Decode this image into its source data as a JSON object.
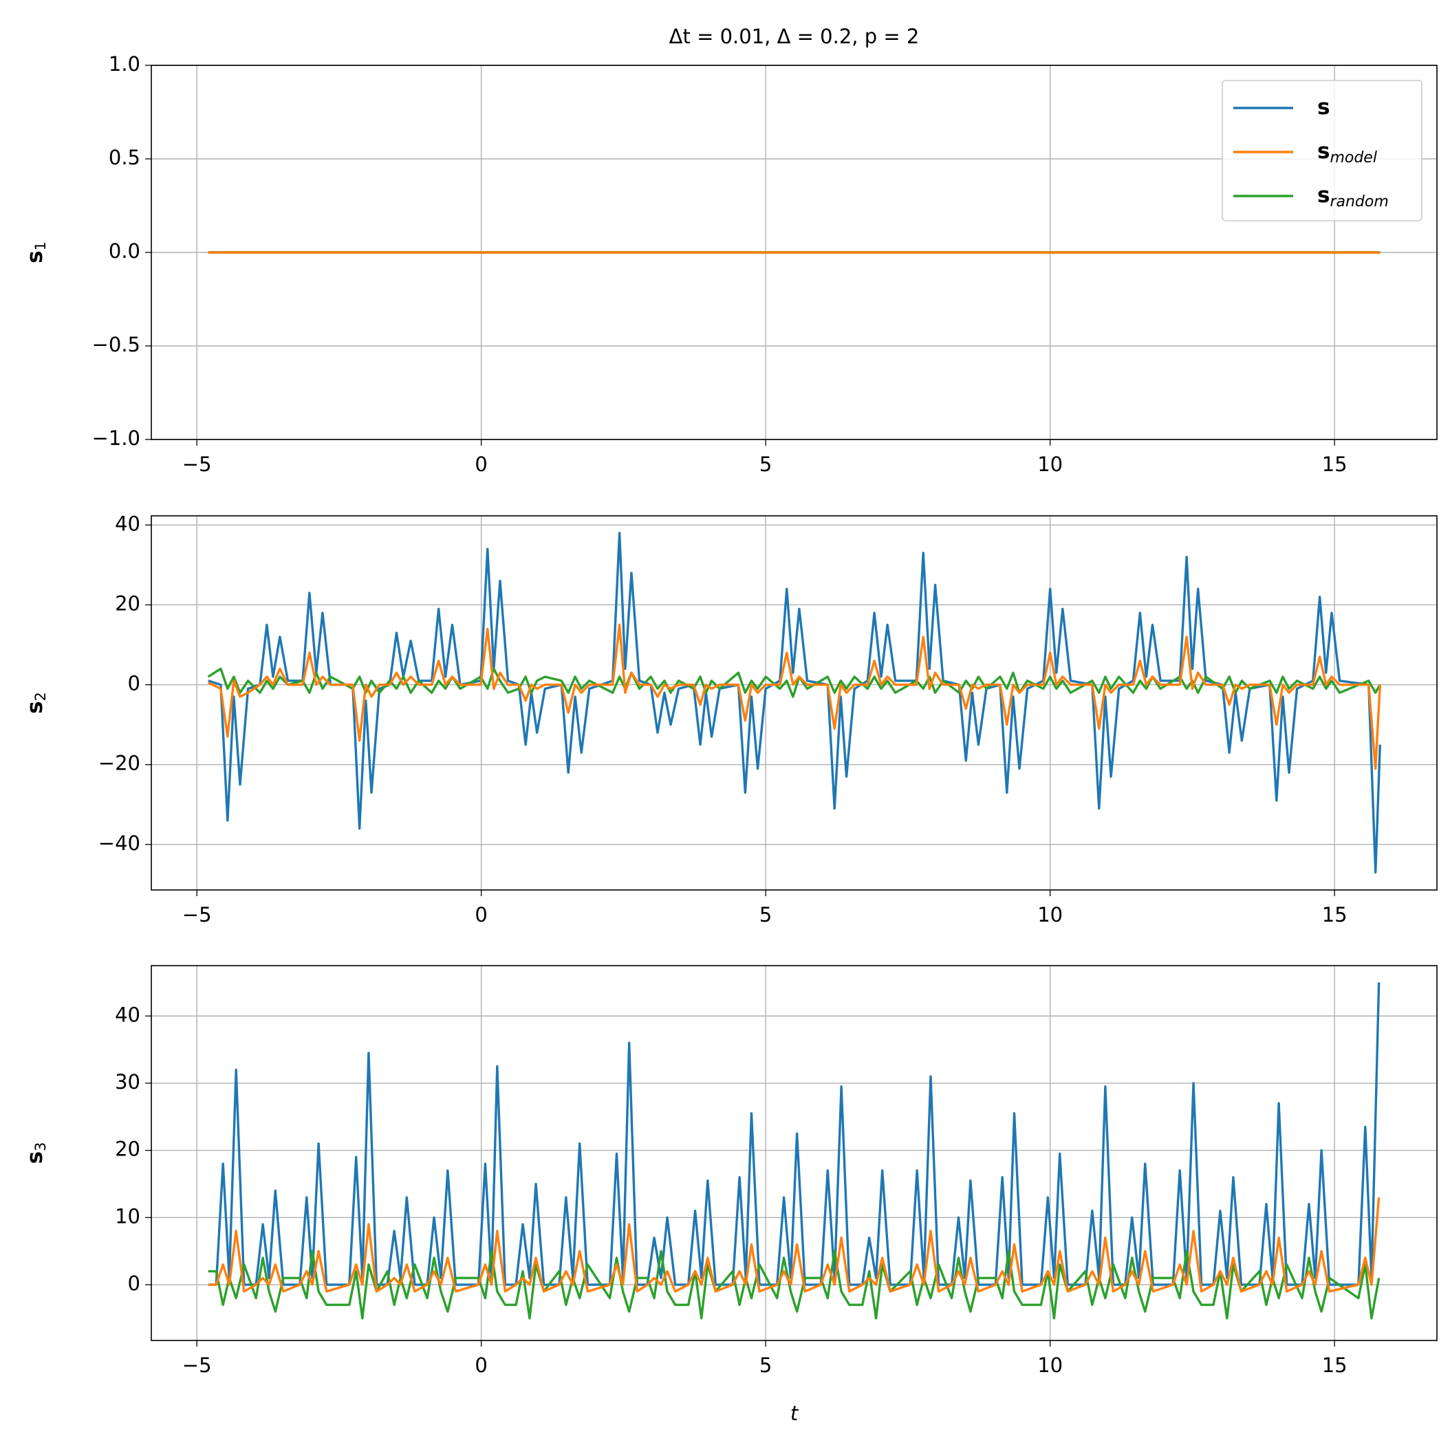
{
  "chart_data": [
    {
      "type": "line",
      "title": "Δt = 0.01, Δ = 0.2, p = 2",
      "ylabel": "s",
      "ylabel_sub": "1",
      "x": [
        -4.8,
        15.8
      ],
      "series": [
        {
          "name": "s",
          "color": "#1f77b4",
          "values": [
            0,
            0
          ]
        },
        {
          "name": "s",
          "subscript": "model",
          "color": "#ff7f0e",
          "values": [
            0,
            0
          ]
        },
        {
          "name": "s",
          "subscript": "random",
          "color": "#2ca02c",
          "values": [
            0,
            0
          ]
        }
      ],
      "xlim": [
        -5.8,
        16.8
      ],
      "xticks": [
        {
          "value": -5,
          "label": "−5"
        },
        0,
        5,
        10,
        15
      ],
      "ylim": [
        -1,
        1
      ],
      "yticks": [
        {
          "value": -1,
          "label": "−1.0"
        },
        {
          "value": -0.5,
          "label": "−0.5"
        },
        {
          "value": 0,
          "label": "0.0"
        },
        {
          "value": 0.5,
          "label": "0.5"
        },
        {
          "value": 1,
          "label": "1.0"
        }
      ],
      "grid": true,
      "legend": "upper right"
    },
    {
      "type": "line",
      "ylabel": "s",
      "ylabel_sub": "2",
      "x": [
        -4.8,
        -4.58,
        -4.46,
        -4.35,
        -4.24,
        -4.1,
        -3.89,
        -3.77,
        -3.66,
        -3.54,
        -3.4,
        -3.14,
        -3.02,
        -2.9,
        -2.79,
        -2.65,
        -2.26,
        -2.14,
        -2.03,
        -1.93,
        -1.79,
        -1.61,
        -1.49,
        -1.37,
        -1.24,
        -1.1,
        -0.87,
        -0.75,
        -0.63,
        -0.51,
        -0.37,
        -0.01,
        0.11,
        0.22,
        0.33,
        0.47,
        0.66,
        0.78,
        0.88,
        0.98,
        1.12,
        1.41,
        1.53,
        1.65,
        1.76,
        1.9,
        2.31,
        2.43,
        2.53,
        2.64,
        2.78,
        2.98,
        3.1,
        3.22,
        3.33,
        3.47,
        3.73,
        3.85,
        3.95,
        4.05,
        4.19,
        4.52,
        4.64,
        4.75,
        4.86,
        5.0,
        5.25,
        5.37,
        5.48,
        5.59,
        5.73,
        6.09,
        6.21,
        6.32,
        6.42,
        6.56,
        6.79,
        6.91,
        7.03,
        7.14,
        7.28,
        7.65,
        7.77,
        7.88,
        7.98,
        8.12,
        8.4,
        8.52,
        8.63,
        8.74,
        8.88,
        9.12,
        9.24,
        9.35,
        9.46,
        9.6,
        9.88,
        10.0,
        10.11,
        10.22,
        10.36,
        10.74,
        10.86,
        10.97,
        11.07,
        11.21,
        11.46,
        11.58,
        11.69,
        11.8,
        11.94,
        12.28,
        12.4,
        12.5,
        12.6,
        12.74,
        13.03,
        13.15,
        13.26,
        13.37,
        13.51,
        13.86,
        13.98,
        14.09,
        14.2,
        14.34,
        14.62,
        14.74,
        14.85,
        14.95,
        15.09,
        15.6,
        15.72,
        15.8
      ],
      "series": [
        {
          "color": "#1f77b4",
          "values": [
            1,
            0,
            -34,
            -3,
            -25,
            -1,
            0,
            15,
            2,
            12,
            1,
            1,
            23,
            3,
            18,
            0,
            0,
            -36,
            -4,
            -27,
            -1,
            0,
            13,
            2,
            11,
            1,
            1,
            19,
            2,
            15,
            0,
            1,
            34,
            4,
            26,
            1,
            0,
            -15,
            -2,
            -12,
            -1,
            0,
            -22,
            -3,
            -17,
            -1,
            1,
            38,
            4,
            28,
            1,
            0,
            -12,
            -2,
            -10,
            -1,
            0,
            -15,
            -2,
            -13,
            -1,
            0,
            -27,
            -3,
            -21,
            -1,
            1,
            24,
            3,
            19,
            1,
            0,
            -31,
            -3,
            -23,
            -1,
            1,
            18,
            2,
            15,
            1,
            1,
            33,
            4,
            25,
            1,
            0,
            -19,
            -2,
            -15,
            -1,
            0,
            -27,
            -3,
            -21,
            -1,
            1,
            24,
            3,
            19,
            1,
            0,
            -31,
            -3,
            -23,
            -1,
            1,
            18,
            2,
            15,
            1,
            1,
            32,
            4,
            24,
            1,
            0,
            -17,
            -2,
            -14,
            -1,
            0,
            -29,
            -3,
            -22,
            -1,
            1,
            22,
            3,
            18,
            1,
            0,
            -47,
            -15
          ]
        },
        {
          "color": "#ff7f0e",
          "values": [
            0.5,
            -1,
            -13,
            1,
            -3,
            -2,
            0,
            2,
            0,
            4,
            0,
            0,
            8,
            0,
            2,
            0,
            0,
            -14,
            0,
            -3,
            0,
            0,
            3,
            0,
            2,
            0,
            0,
            6,
            0,
            2,
            0,
            0,
            14,
            -1,
            3,
            0,
            0,
            -4,
            0,
            -1,
            0,
            0,
            -7,
            0,
            -2,
            0,
            0,
            15,
            -2,
            3,
            0,
            0,
            -3,
            0,
            -1,
            0,
            0,
            -5,
            0,
            -1,
            0,
            0,
            -9,
            0,
            -2,
            0,
            0,
            8,
            0,
            2,
            0,
            0,
            -11,
            0,
            -2,
            0,
            0,
            6,
            0,
            2,
            0,
            0,
            12,
            -1,
            3,
            0,
            0,
            -6,
            0,
            -1,
            0,
            0,
            -10,
            0,
            -2,
            0,
            0,
            8,
            0,
            2,
            0,
            0,
            -11,
            0,
            -2,
            0,
            0,
            6,
            0,
            2,
            0,
            0,
            12,
            -1,
            3,
            0,
            0,
            -5,
            0,
            -1,
            0,
            0,
            -10,
            0,
            -2,
            0,
            0,
            7,
            0,
            2,
            0,
            0,
            -21,
            0
          ]
        },
        {
          "color": "#2ca02c",
          "values": [
            2,
            4,
            -1,
            2,
            -2,
            1,
            -2,
            1,
            -1,
            2,
            0,
            1,
            -2,
            3,
            -1,
            2,
            -1,
            2,
            -2,
            1,
            -2,
            1,
            -1,
            2,
            -2,
            1,
            -2,
            1,
            -1,
            2,
            -1,
            2,
            -1,
            4,
            1,
            -2,
            -1,
            2,
            -2,
            1,
            2,
            1,
            -2,
            2,
            -1,
            1,
            -2,
            2,
            -1,
            3,
            -1,
            2,
            -1,
            1,
            -2,
            1,
            -1,
            2,
            -2,
            1,
            -1,
            3,
            -2,
            1,
            -1,
            2,
            -1,
            1,
            -3,
            2,
            -1,
            2,
            -2,
            1,
            -1,
            2,
            -1,
            2,
            -1,
            1,
            -2,
            1,
            -1,
            2,
            -2,
            1,
            -2,
            1,
            -1,
            2,
            -1,
            2,
            -1,
            3,
            -2,
            1,
            -1,
            2,
            -1,
            1,
            -2,
            1,
            -2,
            2,
            -1,
            2,
            -2,
            1,
            -1,
            2,
            -1,
            2,
            -1,
            1,
            -2,
            2,
            -1,
            2,
            -2,
            1,
            -1,
            1,
            -2,
            2,
            -1,
            1,
            -1,
            2,
            -1,
            1,
            -2,
            1,
            -2,
            0
          ]
        }
      ],
      "xlim": [
        -5.8,
        16.8
      ],
      "xticks": [
        {
          "value": -5,
          "label": "−5"
        },
        0,
        5,
        10,
        15
      ],
      "ylim": [
        -51.4,
        42.3
      ],
      "yticks": [
        {
          "value": -40,
          "label": "−40"
        },
        {
          "value": -20,
          "label": "−20"
        },
        0,
        20,
        40
      ],
      "grid": true
    },
    {
      "type": "line",
      "ylabel": "s",
      "ylabel_sub": "3",
      "xlabel": "t",
      "x": [
        -4.8,
        -4.66,
        -4.54,
        -4.43,
        -4.31,
        -4.17,
        -3.96,
        -3.84,
        -3.73,
        -3.62,
        -3.48,
        -3.19,
        -3.07,
        -2.97,
        -2.86,
        -2.72,
        -2.32,
        -2.2,
        -2.09,
        -1.98,
        -1.84,
        -1.65,
        -1.53,
        -1.42,
        -1.31,
        -1.17,
        -0.95,
        -0.83,
        -0.71,
        -0.59,
        -0.45,
        -0.05,
        0.07,
        0.18,
        0.28,
        0.42,
        0.61,
        0.73,
        0.85,
        0.96,
        1.1,
        1.37,
        1.49,
        1.61,
        1.73,
        1.87,
        2.26,
        2.38,
        2.49,
        2.6,
        2.74,
        2.92,
        3.04,
        3.16,
        3.27,
        3.41,
        3.64,
        3.76,
        3.87,
        3.98,
        4.12,
        4.42,
        4.54,
        4.65,
        4.75,
        4.89,
        5.2,
        5.32,
        5.44,
        5.55,
        5.69,
        5.97,
        6.09,
        6.21,
        6.33,
        6.47,
        6.7,
        6.82,
        6.94,
        7.05,
        7.19,
        7.54,
        7.66,
        7.78,
        7.9,
        8.04,
        8.27,
        8.39,
        8.5,
        8.6,
        8.74,
        9.04,
        9.16,
        9.27,
        9.37,
        9.51,
        9.84,
        9.96,
        10.07,
        10.17,
        10.31,
        10.62,
        10.74,
        10.86,
        10.97,
        11.11,
        11.32,
        11.44,
        11.56,
        11.67,
        11.81,
        12.16,
        12.28,
        12.4,
        12.52,
        12.66,
        12.87,
        12.99,
        13.11,
        13.22,
        13.36,
        13.68,
        13.8,
        13.91,
        14.02,
        14.16,
        14.43,
        14.55,
        14.66,
        14.77,
        14.91,
        15.42,
        15.54,
        15.65,
        15.78
      ],
      "series": [
        {
          "color": "#1f77b4",
          "values": [
            0,
            0,
            18,
            1,
            32,
            0,
            0,
            9,
            1,
            14,
            0,
            0,
            13,
            1,
            21,
            0,
            0,
            19,
            1,
            34.5,
            0,
            0,
            8,
            1,
            13,
            0,
            0,
            10,
            1,
            17,
            0,
            0,
            18,
            1,
            32.5,
            0,
            0,
            9,
            1,
            15,
            0,
            0,
            13,
            1,
            21,
            0,
            0,
            19.5,
            1,
            36,
            0,
            0,
            7,
            1,
            10,
            0,
            0,
            11,
            1,
            15.5,
            0,
            0,
            16,
            1,
            25.5,
            0,
            0,
            13,
            1,
            22.5,
            0,
            0,
            17,
            1,
            29.5,
            0,
            0,
            7,
            1,
            17,
            0,
            0,
            17,
            1,
            31,
            0,
            0,
            10,
            1,
            15.5,
            0,
            0,
            16,
            1,
            25.5,
            0,
            0,
            13,
            1,
            19.5,
            0,
            0,
            11,
            1,
            29.5,
            0,
            0,
            10,
            1,
            18,
            0,
            0,
            17,
            1,
            30,
            0,
            0,
            11,
            1,
            16,
            0,
            0,
            12,
            1,
            27,
            0,
            0,
            12,
            1,
            20,
            0,
            0,
            23.5,
            1,
            45
          ]
        },
        {
          "color": "#ff7f0e",
          "values": [
            0,
            0,
            3,
            0,
            8,
            -1,
            0,
            1,
            0,
            3,
            -1,
            0,
            2,
            0,
            5,
            -1,
            0,
            3,
            0,
            9,
            -1,
            0,
            1,
            0,
            3,
            -1,
            0,
            2,
            0,
            4,
            -1,
            0,
            3,
            0,
            8,
            -1,
            0,
            1,
            0,
            4,
            -1,
            0,
            2,
            0,
            5,
            -1,
            0,
            3,
            0,
            9,
            -1,
            0,
            1,
            0,
            2,
            -1,
            0,
            2,
            0,
            4,
            -1,
            0,
            2,
            0,
            6,
            -1,
            0,
            2,
            0,
            6,
            -1,
            0,
            3,
            0,
            7,
            -1,
            0,
            1,
            0,
            4,
            -1,
            0,
            3,
            0,
            8,
            -1,
            0,
            2,
            0,
            4,
            -1,
            0,
            2,
            0,
            6,
            -1,
            0,
            2,
            0,
            5,
            -1,
            0,
            2,
            0,
            7,
            -1,
            0,
            2,
            0,
            5,
            -1,
            0,
            3,
            0,
            8,
            -1,
            0,
            2,
            0,
            4,
            -1,
            0,
            2,
            0,
            7,
            -1,
            0,
            2,
            0,
            5,
            -1,
            0,
            4,
            0,
            13
          ]
        },
        {
          "color": "#2ca02c",
          "values": [
            2,
            2,
            -3,
            1,
            -2,
            3,
            -2,
            4,
            -1,
            -4,
            1,
            1,
            -2,
            5,
            -1,
            -3,
            -3,
            2,
            -5,
            3,
            -1,
            2,
            -3,
            1,
            -2,
            3,
            -2,
            4,
            -1,
            -4,
            1,
            1,
            -2,
            5,
            -1,
            -3,
            -3,
            2,
            -5,
            3,
            -1,
            2,
            -3,
            1,
            -2,
            3,
            -2,
            4,
            -1,
            -4,
            1,
            1,
            -2,
            5,
            -1,
            -3,
            -3,
            2,
            -5,
            3,
            -1,
            2,
            -3,
            1,
            -2,
            3,
            -2,
            4,
            -1,
            -4,
            1,
            1,
            -2,
            5,
            -1,
            -3,
            -3,
            2,
            -5,
            3,
            -1,
            2,
            -3,
            1,
            -2,
            3,
            -2,
            4,
            -1,
            -4,
            1,
            1,
            -2,
            5,
            -1,
            -3,
            -3,
            2,
            -5,
            3,
            -1,
            2,
            -3,
            1,
            -2,
            3,
            -2,
            4,
            -1,
            -4,
            1,
            1,
            -2,
            5,
            -1,
            -3,
            -3,
            2,
            -5,
            3,
            -1,
            2,
            -3,
            1,
            -2,
            3,
            -2,
            4,
            -1,
            -4,
            1,
            -2,
            3,
            -5,
            1
          ]
        }
      ],
      "xlim": [
        -5.8,
        16.8
      ],
      "xticks": [
        {
          "value": -5,
          "label": "−5"
        },
        0,
        5,
        10,
        15
      ],
      "ylim": [
        -8.3,
        47.5
      ],
      "yticks": [
        0,
        10,
        20,
        30,
        40
      ],
      "grid": true
    }
  ]
}
